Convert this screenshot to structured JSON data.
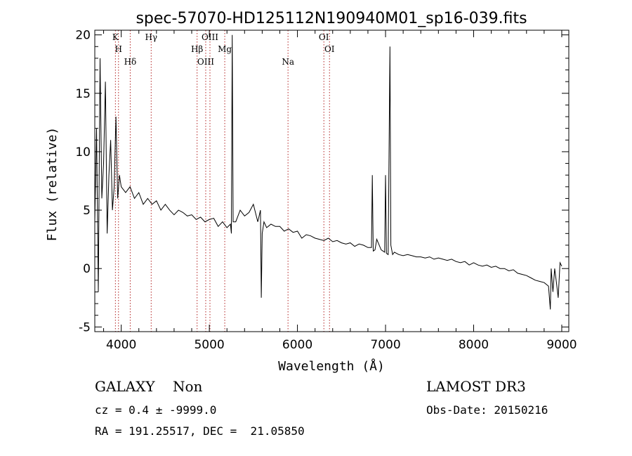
{
  "chart_data": {
    "type": "line",
    "title": "spec-57070-HD125112N190940M01_sp16-039.fits",
    "xlabel": "Wavelength (Å)",
    "ylabel": "Flux (relative)",
    "xlim": [
      3700,
      9080
    ],
    "ylim": [
      -5.4,
      20.4
    ],
    "xticks": [
      4000,
      5000,
      6000,
      7000,
      8000,
      9000
    ],
    "yticks": [
      -5,
      0,
      5,
      10,
      15,
      20
    ],
    "grid": false,
    "series": [
      {
        "x": [
          3700,
          3720,
          3740,
          3760,
          3780,
          3800,
          3820,
          3840,
          3860,
          3880,
          3900,
          3920,
          3940,
          3960,
          3980,
          4000,
          4050,
          4100,
          4150,
          4200,
          4250,
          4300,
          4350,
          4400,
          4450,
          4500,
          4550,
          4600,
          4650,
          4700,
          4750,
          4800,
          4850,
          4900,
          4950,
          5000,
          5050,
          5100,
          5150,
          5200,
          5240,
          5250,
          5260,
          5270,
          5300,
          5350,
          5400,
          5450,
          5500,
          5550,
          5580,
          5590,
          5600,
          5620,
          5650,
          5700,
          5750,
          5800,
          5850,
          5900,
          5950,
          6000,
          6050,
          6100,
          6150,
          6200,
          6250,
          6300,
          6350,
          6400,
          6450,
          6500,
          6550,
          6600,
          6650,
          6700,
          6750,
          6800,
          6840,
          6850,
          6860,
          6880,
          6900,
          6950,
          6990,
          7000,
          7010,
          7030,
          7050,
          7060,
          7080,
          7100,
          7150,
          7200,
          7250,
          7300,
          7350,
          7400,
          7450,
          7500,
          7550,
          7600,
          7650,
          7700,
          7750,
          7800,
          7850,
          7900,
          7950,
          8000,
          8050,
          8100,
          8150,
          8200,
          8250,
          8300,
          8350,
          8400,
          8450,
          8500,
          8550,
          8600,
          8650,
          8700,
          8750,
          8800,
          8850,
          8870,
          8880,
          8900,
          8920,
          8940,
          8960,
          8980,
          9000
        ],
        "y": [
          4,
          12,
          -2,
          18,
          6,
          9,
          16,
          3,
          8,
          11,
          5,
          7,
          13,
          6,
          8,
          7,
          6.5,
          7,
          6,
          6.5,
          5.5,
          6,
          5.5,
          5.8,
          5,
          5.5,
          5,
          4.6,
          5,
          4.8,
          4.5,
          4.6,
          4.2,
          4.4,
          4,
          4.2,
          4.3,
          3.6,
          4,
          3.5,
          3.8,
          3,
          20,
          4,
          4,
          5,
          4.5,
          4.8,
          5.5,
          4,
          5,
          -2.5,
          3,
          4,
          3.5,
          3.8,
          3.6,
          3.6,
          3.2,
          3.4,
          3.1,
          3.2,
          2.6,
          2.9,
          2.8,
          2.6,
          2.5,
          2.4,
          2.6,
          2.3,
          2.4,
          2.2,
          2.1,
          2.2,
          1.9,
          2.1,
          2,
          1.8,
          1.8,
          8,
          1.5,
          1.6,
          2.5,
          1.6,
          1.4,
          8,
          1.3,
          1.2,
          19,
          2,
          1.2,
          1.4,
          1.2,
          1.1,
          1.2,
          1.1,
          1,
          1,
          0.9,
          1,
          0.8,
          0.9,
          0.8,
          0.7,
          0.8,
          0.6,
          0.5,
          0.6,
          0.3,
          0.5,
          0.3,
          0.2,
          0.3,
          0.1,
          0.2,
          0,
          0,
          -0.2,
          -0.1,
          -0.4,
          -0.5,
          -0.6,
          -0.8,
          -1,
          -1.1,
          -1.2,
          -1.5,
          -3.5,
          0,
          -2,
          0,
          -1.2,
          -2.5,
          0.5,
          0.2
        ]
      }
    ],
    "line_markers": [
      {
        "x": 3934,
        "label": "K"
      },
      {
        "x": 3969,
        "label": "H"
      },
      {
        "x": 4102,
        "label": "Hδ"
      },
      {
        "x": 4340,
        "label": "Hγ"
      },
      {
        "x": 4861,
        "label": "Hβ"
      },
      {
        "x": 4959,
        "label": "OIII"
      },
      {
        "x": 5007,
        "label": "OIII"
      },
      {
        "x": 5175,
        "label": "Mg"
      },
      {
        "x": 5893,
        "label": "Na"
      },
      {
        "x": 6300,
        "label": "OI"
      },
      {
        "x": 6364,
        "label": "OI"
      }
    ]
  }
}
